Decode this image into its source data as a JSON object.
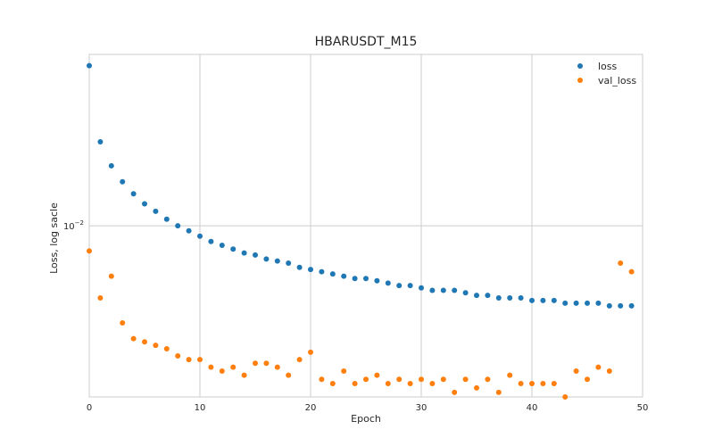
{
  "chart_data": {
    "type": "scatter",
    "title": "HBARUSDT_M15",
    "xlabel": "Epoch",
    "ylabel": "Loss, log sacle",
    "xlim": [
      0,
      50
    ],
    "ylim": [
      0.0036,
      0.0278
    ],
    "yscale": "log",
    "grid": true,
    "legend_position": "top-right",
    "xticks": [
      0,
      10,
      20,
      30,
      40,
      50
    ],
    "yticks": [
      {
        "value": 0.01,
        "base": "10",
        "exp": "−2"
      }
    ],
    "series": [
      {
        "name": "loss",
        "color": "#1f77b4",
        "x": [
          0,
          1,
          2,
          3,
          4,
          5,
          6,
          7,
          8,
          9,
          10,
          11,
          12,
          13,
          14,
          15,
          16,
          17,
          18,
          19,
          20,
          21,
          22,
          23,
          24,
          25,
          26,
          27,
          28,
          29,
          30,
          31,
          32,
          33,
          34,
          35,
          36,
          37,
          38,
          39,
          40,
          41,
          42,
          43,
          44,
          45,
          46,
          47,
          48,
          49
        ],
        "values": [
          0.026,
          0.0165,
          0.0143,
          0.013,
          0.0121,
          0.0114,
          0.0109,
          0.0104,
          0.01,
          0.0097,
          0.0094,
          0.0091,
          0.0089,
          0.0087,
          0.0085,
          0.0084,
          0.0082,
          0.0081,
          0.008,
          0.0078,
          0.0077,
          0.0076,
          0.0075,
          0.0074,
          0.0073,
          0.0073,
          0.0072,
          0.0071,
          0.007,
          0.007,
          0.0069,
          0.0068,
          0.0068,
          0.0068,
          0.0067,
          0.0066,
          0.0066,
          0.0065,
          0.0065,
          0.0065,
          0.0064,
          0.0064,
          0.0064,
          0.0063,
          0.0063,
          0.0063,
          0.0063,
          0.0062,
          0.0062,
          0.0062
        ]
      },
      {
        "name": "val_loss",
        "color": "#ff7f0e",
        "x": [
          0,
          1,
          2,
          3,
          4,
          5,
          6,
          7,
          8,
          9,
          10,
          11,
          12,
          13,
          14,
          15,
          16,
          17,
          18,
          19,
          20,
          21,
          22,
          23,
          24,
          25,
          26,
          27,
          28,
          29,
          30,
          31,
          32,
          33,
          34,
          35,
          36,
          37,
          38,
          39,
          40,
          41,
          42,
          43,
          44,
          45,
          46,
          47,
          48,
          49
        ],
        "values": [
          0.0086,
          0.0065,
          0.0074,
          0.0056,
          0.0051,
          0.005,
          0.0049,
          0.0048,
          0.0046,
          0.0045,
          0.0045,
          0.0043,
          0.0042,
          0.0043,
          0.0041,
          0.0044,
          0.0044,
          0.0043,
          0.0041,
          0.0045,
          0.0047,
          0.004,
          0.0039,
          0.0042,
          0.0039,
          0.004,
          0.0041,
          0.0039,
          0.004,
          0.0039,
          0.004,
          0.0039,
          0.004,
          0.0037,
          0.004,
          0.0038,
          0.004,
          0.0037,
          0.0041,
          0.0039,
          0.0039,
          0.0039,
          0.0039,
          0.0036,
          0.0042,
          0.004,
          0.0043,
          0.0042,
          0.008,
          0.0076
        ]
      }
    ]
  }
}
